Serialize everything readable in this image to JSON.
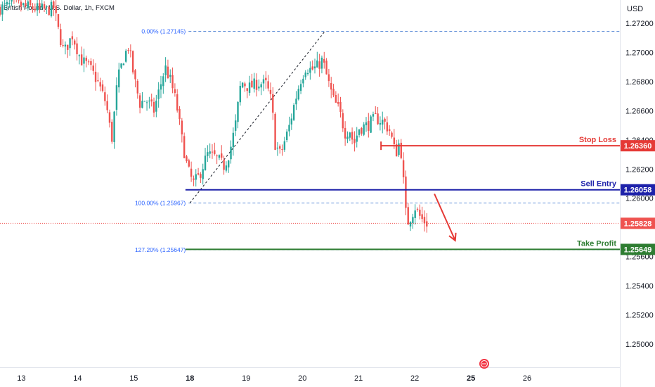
{
  "header": {
    "title": "British Pound / U.S. Dollar, 1h, FXCM",
    "currency": "USD"
  },
  "colors": {
    "up": "#26a69a",
    "down": "#ef5350",
    "stop_loss": "#e53935",
    "sell_entry": "#1e22aa",
    "take_profit": "#2e7d32",
    "fib": "#5b8bd6",
    "current": "#ef5350"
  },
  "chart_data": {
    "type": "candlestick",
    "y_range": [
      1.2484,
      1.2736
    ],
    "y_ticks": [
      "1.27200",
      "1.27000",
      "1.26800",
      "1.26600",
      "1.26400",
      "1.26200",
      "1.26000",
      "1.25600",
      "1.25400",
      "1.25200",
      "1.25000"
    ],
    "x_ticks": [
      {
        "label": "13",
        "x": 13,
        "bold": false
      },
      {
        "label": "14",
        "x": 14,
        "bold": false
      },
      {
        "label": "15",
        "x": 15,
        "bold": false
      },
      {
        "label": "18",
        "x": 16,
        "bold": true
      },
      {
        "label": "19",
        "x": 17,
        "bold": false
      },
      {
        "label": "20",
        "x": 18,
        "bold": false
      },
      {
        "label": "21",
        "x": 19,
        "bold": false
      },
      {
        "label": "22",
        "x": 20,
        "bold": false
      },
      {
        "label": "25",
        "x": 21,
        "bold": true
      },
      {
        "label": "26",
        "x": 22,
        "bold": false
      }
    ],
    "x_range": [
      12.62,
      23.65
    ],
    "series_path": [
      [
        12.62,
        1.273
      ],
      [
        12.9,
        1.2733
      ],
      [
        13.2,
        1.2731
      ],
      [
        13.5,
        1.2729
      ],
      [
        13.62,
        1.2731
      ],
      [
        13.7,
        1.2715
      ],
      [
        13.8,
        1.27
      ],
      [
        13.95,
        1.2712
      ],
      [
        14.1,
        1.2695
      ],
      [
        14.25,
        1.269
      ],
      [
        14.4,
        1.268
      ],
      [
        14.55,
        1.2665
      ],
      [
        14.65,
        1.264
      ],
      [
        14.75,
        1.268
      ],
      [
        14.85,
        1.2695
      ],
      [
        14.95,
        1.2705
      ],
      [
        15.05,
        1.2682
      ],
      [
        15.15,
        1.2665
      ],
      [
        15.25,
        1.2668
      ],
      [
        15.4,
        1.266
      ],
      [
        15.5,
        1.2675
      ],
      [
        15.6,
        1.269
      ],
      [
        15.7,
        1.268
      ],
      [
        15.8,
        1.2665
      ],
      [
        15.9,
        1.264
      ],
      [
        16.0,
        1.262
      ],
      [
        16.1,
        1.261
      ],
      [
        16.2,
        1.2615
      ],
      [
        16.35,
        1.263
      ],
      [
        16.5,
        1.2628
      ],
      [
        16.65,
        1.2622
      ],
      [
        16.75,
        1.2632
      ],
      [
        16.85,
        1.265
      ],
      [
        16.95,
        1.268
      ],
      [
        17.1,
        1.2676
      ],
      [
        17.25,
        1.2679
      ],
      [
        17.4,
        1.2678
      ],
      [
        17.5,
        1.2665
      ],
      [
        17.55,
        1.2638
      ],
      [
        17.65,
        1.263
      ],
      [
        17.8,
        1.2648
      ],
      [
        17.9,
        1.2665
      ],
      [
        18.0,
        1.268
      ],
      [
        18.1,
        1.269
      ],
      [
        18.2,
        1.2688
      ],
      [
        18.3,
        1.269
      ],
      [
        18.4,
        1.2695
      ],
      [
        18.5,
        1.268
      ],
      [
        18.6,
        1.2667
      ],
      [
        18.7,
        1.266
      ],
      [
        18.8,
        1.2645
      ],
      [
        18.9,
        1.2647
      ],
      [
        18.95,
        1.2636
      ],
      [
        19.05,
        1.2648
      ],
      [
        19.2,
        1.265
      ],
      [
        19.35,
        1.2655
      ],
      [
        19.5,
        1.2652
      ],
      [
        19.6,
        1.2646
      ],
      [
        19.7,
        1.263
      ],
      [
        19.78,
        1.264
      ],
      [
        19.83,
        1.2618
      ],
      [
        19.86,
        1.26
      ],
      [
        19.9,
        1.2582
      ],
      [
        19.95,
        1.2586
      ],
      [
        20.05,
        1.2594
      ],
      [
        20.15,
        1.2586
      ],
      [
        20.25,
        1.2583
      ]
    ],
    "swing_low": {
      "x": 16.0,
      "y": 1.25967
    },
    "swing_high": {
      "x": 18.4,
      "y": 1.27145
    },
    "fib_levels": [
      {
        "label": "0.00% (1.27145)",
        "price": 1.27145
      },
      {
        "label": "100.00% (1.25967)",
        "price": 1.25967
      },
      {
        "label": "127.20% (1.25647)",
        "price": 1.25647
      }
    ],
    "levels": [
      {
        "name": "Stop Loss",
        "price": 1.2636,
        "tag": "1.26360",
        "color_key": "stop_loss",
        "x_start": 19.4
      },
      {
        "name": "Sell Entry",
        "price": 1.26058,
        "tag": "1.26058",
        "color_key": "sell_entry",
        "x_start": 15.92
      },
      {
        "name": "Take Profit",
        "price": 1.25649,
        "tag": "1.25649",
        "color_key": "take_profit",
        "x_start": 15.92
      }
    ],
    "current_price": {
      "price": 1.25828,
      "tag": "1.25828"
    },
    "forecast_arrow": {
      "from": [
        20.35,
        1.2603
      ],
      "to": [
        20.72,
        1.2571
      ]
    }
  }
}
